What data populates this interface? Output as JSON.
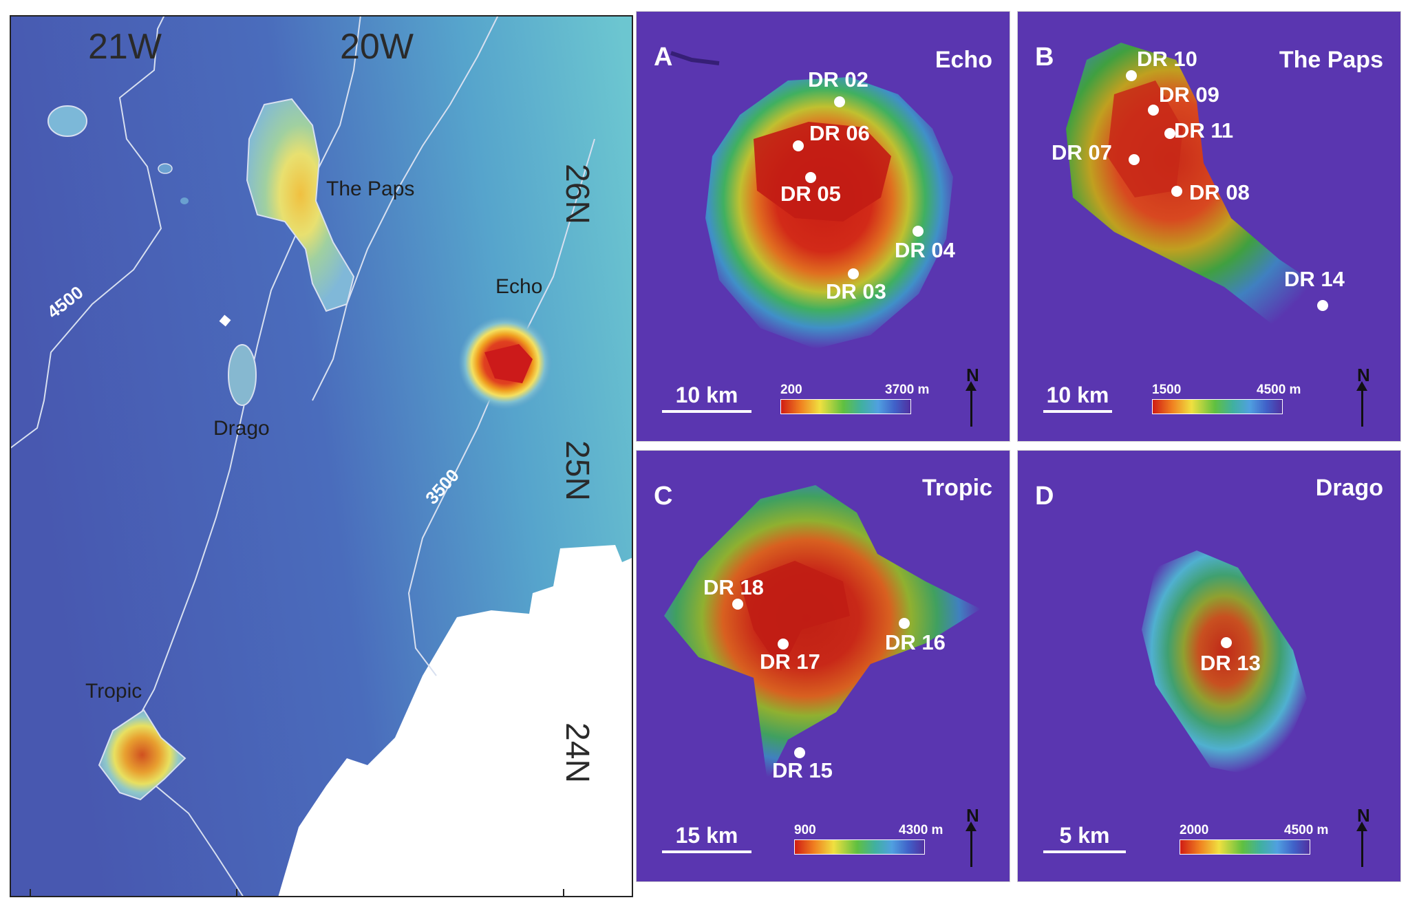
{
  "overview": {
    "lon_labels": [
      "21W",
      "20W"
    ],
    "lat_labels": [
      "26N",
      "25N",
      "24N"
    ],
    "contours": [
      "4500",
      "3500"
    ],
    "seamounts": [
      "The Paps",
      "Echo",
      "Drago",
      "Tropic"
    ]
  },
  "panels": [
    {
      "letter": "A",
      "name": "Echo",
      "scale": "10 km",
      "depth_min": "200",
      "depth_max": "3700 m",
      "north": "N",
      "samples": [
        "DR 02",
        "DR 06",
        "DR 05",
        "DR 04",
        "DR 03"
      ]
    },
    {
      "letter": "B",
      "name": "The Paps",
      "scale": "10 km",
      "depth_min": "1500",
      "depth_max": "4500 m",
      "north": "N",
      "samples": [
        "DR 10",
        "DR 09",
        "DR 11",
        "DR 07",
        "DR 08",
        "DR 14"
      ]
    },
    {
      "letter": "C",
      "name": "Tropic",
      "scale": "15 km",
      "depth_min": "900",
      "depth_max": "4300 m",
      "north": "N",
      "samples": [
        "DR 18",
        "DR 17",
        "DR 16",
        "DR 15"
      ]
    },
    {
      "letter": "D",
      "name": "Drago",
      "scale": "5 km",
      "depth_min": "2000",
      "depth_max": "4500 m",
      "north": "N",
      "samples": [
        "DR 13"
      ]
    }
  ],
  "colors": {
    "sea_deep": "#5a36b0",
    "overview_base": "#4a63b8",
    "shallow": "#c81e10"
  }
}
